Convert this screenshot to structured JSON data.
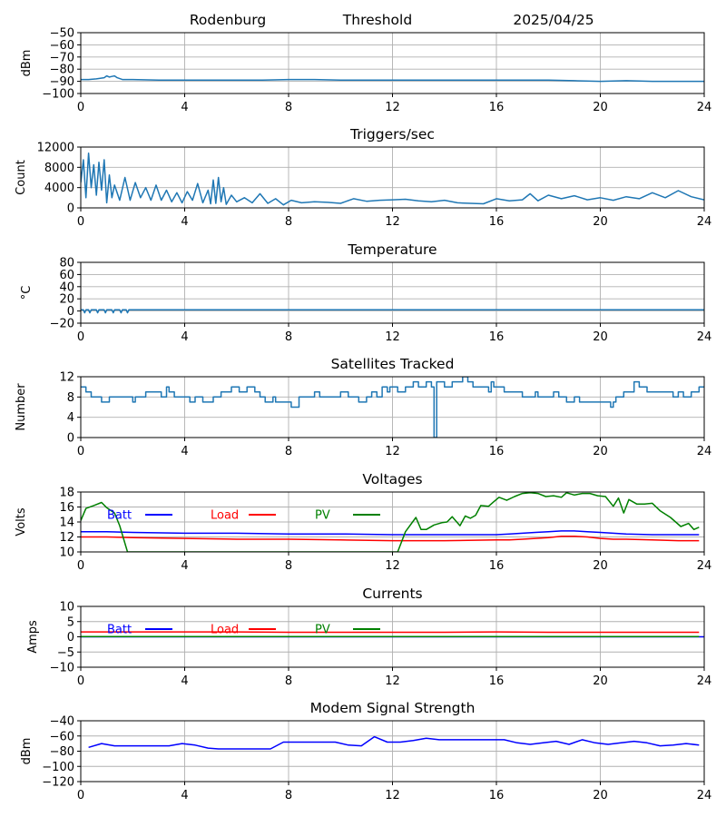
{
  "header": {
    "site": "Rodenburg",
    "label": "Threshold",
    "date": "2025/04/25"
  },
  "chart_data": [
    {
      "type": "line",
      "title": "",
      "xlabel": "",
      "ylabel": "dBm",
      "xlim": [
        0,
        24
      ],
      "ylim": [
        -100,
        -50
      ],
      "xticks": [
        0,
        4,
        8,
        12,
        16,
        20,
        24
      ],
      "yticks": [
        -100,
        -90,
        -80,
        -70,
        -60,
        -50
      ],
      "grid": true,
      "series": [
        {
          "color": "#1f77b4",
          "x": [
            0,
            0.3,
            0.6,
            0.9,
            1.0,
            1.1,
            1.2,
            1.3,
            1.4,
            1.6,
            2,
            3,
            4,
            5,
            6,
            7,
            8,
            9,
            10,
            11,
            12,
            13,
            14,
            15,
            16,
            17,
            18,
            19,
            20,
            21,
            22,
            23,
            24
          ],
          "y": [
            -88.5,
            -88.5,
            -88,
            -87,
            -85.5,
            -86.5,
            -86,
            -85.5,
            -87,
            -88.5,
            -88.5,
            -89,
            -89,
            -89,
            -89,
            -89,
            -88.5,
            -88.5,
            -89,
            -89,
            -89,
            -89,
            -89,
            -89,
            -89,
            -89,
            -89,
            -89.5,
            -90,
            -89.5,
            -90,
            -90,
            -90
          ]
        }
      ]
    },
    {
      "type": "line",
      "title": "Triggers/sec",
      "xlabel": "",
      "ylabel": "Count",
      "xlim": [
        0,
        24
      ],
      "ylim": [
        0,
        12000
      ],
      "xticks": [
        0,
        4,
        8,
        12,
        16,
        20,
        24
      ],
      "yticks": [
        0,
        4000,
        8000,
        12000
      ],
      "grid": true,
      "series": [
        {
          "color": "#1f77b4",
          "x": [
            0,
            0.1,
            0.2,
            0.3,
            0.4,
            0.5,
            0.6,
            0.7,
            0.8,
            0.9,
            1.0,
            1.1,
            1.2,
            1.3,
            1.5,
            1.7,
            1.9,
            2.1,
            2.3,
            2.5,
            2.7,
            2.9,
            3.1,
            3.3,
            3.5,
            3.7,
            3.9,
            4.1,
            4.3,
            4.5,
            4.7,
            4.9,
            5.0,
            5.1,
            5.2,
            5.3,
            5.4,
            5.5,
            5.6,
            5.8,
            6.0,
            6.3,
            6.6,
            6.9,
            7.2,
            7.5,
            7.8,
            8.1,
            8.5,
            9.0,
            9.5,
            10.0,
            10.5,
            11.0,
            11.5,
            12.0,
            12.5,
            13.0,
            13.5,
            14.0,
            14.5,
            15.0,
            15.5,
            16.0,
            16.5,
            17.0,
            17.3,
            17.6,
            18.0,
            18.5,
            19.0,
            19.5,
            20.0,
            20.5,
            21.0,
            21.5,
            22.0,
            22.5,
            23.0,
            23.5,
            24.0
          ],
          "y": [
            5000,
            9500,
            2000,
            10800,
            4000,
            8500,
            2500,
            9000,
            3500,
            9500,
            1000,
            6500,
            2000,
            4500,
            1500,
            6000,
            1500,
            5000,
            2000,
            4000,
            1500,
            4500,
            1500,
            3500,
            1200,
            3000,
            1000,
            3200,
            1500,
            4800,
            1000,
            3500,
            800,
            5500,
            900,
            6000,
            1200,
            4000,
            700,
            2500,
            1200,
            2000,
            1000,
            2800,
            900,
            1800,
            600,
            1500,
            1000,
            1200,
            1100,
            900,
            1800,
            1300,
            1500,
            1600,
            1700,
            1400,
            1200,
            1500,
            1000,
            900,
            800,
            1800,
            1400,
            1600,
            2800,
            1400,
            2500,
            1800,
            2400,
            1600,
            2000,
            1500,
            2200,
            1800,
            3000,
            2000,
            3400,
            2200,
            1600
          ]
        }
      ]
    },
    {
      "type": "line",
      "title": "Temperature",
      "xlabel": "",
      "ylabel": "°C",
      "xlim": [
        0,
        24
      ],
      "ylim": [
        -20,
        80
      ],
      "xticks": [
        0,
        4,
        8,
        12,
        16,
        20,
        24
      ],
      "yticks": [
        -20,
        0,
        20,
        40,
        60,
        80
      ],
      "grid": true,
      "series": [
        {
          "color": "#1f77b4",
          "x": [
            0,
            0.1,
            0.15,
            0.2,
            0.3,
            0.35,
            0.4,
            0.6,
            0.65,
            0.7,
            0.9,
            0.95,
            1.0,
            1.2,
            1.25,
            1.3,
            1.5,
            1.55,
            1.6,
            1.75,
            1.8,
            1.85,
            2.0,
            24.0
          ],
          "y": [
            2,
            2,
            -3,
            2,
            2,
            -3,
            2,
            2,
            -3,
            2,
            2,
            -3,
            2,
            2,
            -3,
            2,
            2,
            -3,
            2,
            2,
            -3,
            2,
            2,
            2
          ]
        }
      ]
    },
    {
      "type": "line",
      "title": "Satellites Tracked",
      "xlabel": "",
      "ylabel": "Number",
      "xlim": [
        0,
        24
      ],
      "ylim": [
        0,
        12
      ],
      "xticks": [
        0,
        4,
        8,
        12,
        16,
        20,
        24
      ],
      "yticks": [
        0,
        4,
        8,
        12
      ],
      "grid": true,
      "series": [
        {
          "color": "#1f77b4",
          "step": true,
          "x": [
            0,
            0.2,
            0.4,
            0.8,
            1.1,
            2.0,
            2.1,
            2.2,
            2.5,
            3.1,
            3.3,
            3.4,
            3.6,
            4.2,
            4.4,
            4.7,
            5.1,
            5.4,
            5.8,
            6.1,
            6.4,
            6.7,
            6.9,
            7.1,
            7.4,
            7.5,
            8.0,
            8.1,
            8.4,
            9.0,
            9.2,
            10.0,
            10.3,
            10.7,
            11.0,
            11.2,
            11.4,
            11.6,
            11.8,
            11.9,
            12.2,
            12.5,
            12.8,
            13.0,
            13.3,
            13.5,
            13.6,
            13.7,
            14.0,
            14.3,
            14.7,
            14.9,
            15.1,
            15.7,
            15.8,
            15.9,
            16.3,
            16.6,
            17.0,
            17.5,
            17.6,
            18.2,
            18.4,
            18.7,
            19.0,
            19.2,
            20.0,
            20.4,
            20.5,
            20.6,
            20.9,
            21.3,
            21.5,
            21.8,
            22.4,
            22.8,
            23.0,
            23.2,
            23.5,
            23.8,
            24.0
          ],
          "y": [
            10,
            9,
            8,
            7,
            8,
            7,
            8,
            8,
            9,
            8,
            10,
            9,
            8,
            7,
            8,
            7,
            8,
            9,
            10,
            9,
            10,
            9,
            8,
            7,
            8,
            7,
            7,
            6,
            8,
            9,
            8,
            9,
            8,
            7,
            8,
            9,
            8,
            10,
            9,
            10,
            9,
            10,
            11,
            10,
            11,
            10,
            0,
            11,
            10,
            11,
            12,
            11,
            10,
            9,
            11,
            10,
            9,
            9,
            8,
            9,
            8,
            9,
            8,
            7,
            8,
            7,
            7,
            6,
            7,
            8,
            9,
            11,
            10,
            9,
            9,
            8,
            9,
            8,
            9,
            10,
            10
          ]
        }
      ]
    },
    {
      "type": "line",
      "title": "Voltages",
      "xlabel": "",
      "ylabel": "Volts",
      "xlim": [
        0,
        24
      ],
      "ylim": [
        10,
        18
      ],
      "xticks": [
        0,
        4,
        8,
        12,
        16,
        20,
        24
      ],
      "yticks": [
        10,
        12,
        14,
        16,
        18
      ],
      "grid": true,
      "legend": "top-left",
      "series": [
        {
          "name": "Batt",
          "color": "#0000ff",
          "x": [
            0,
            1,
            2,
            4,
            6,
            8,
            10,
            12,
            14,
            16,
            16.5,
            17,
            17.5,
            18,
            18.5,
            19,
            19.5,
            20,
            20.5,
            21,
            22,
            23,
            23.8
          ],
          "y": [
            12.7,
            12.7,
            12.6,
            12.5,
            12.5,
            12.4,
            12.4,
            12.3,
            12.3,
            12.3,
            12.4,
            12.5,
            12.6,
            12.7,
            12.8,
            12.8,
            12.7,
            12.6,
            12.5,
            12.4,
            12.3,
            12.3,
            12.3
          ]
        },
        {
          "name": "Load",
          "color": "#ff0000",
          "x": [
            0,
            1,
            2,
            4,
            6,
            8,
            10,
            12,
            14,
            16,
            16.5,
            17,
            17.5,
            18,
            18.5,
            19,
            19.5,
            20,
            20.5,
            21,
            22,
            23,
            23.8
          ],
          "y": [
            12,
            12,
            11.9,
            11.8,
            11.7,
            11.7,
            11.6,
            11.5,
            11.5,
            11.6,
            11.6,
            11.7,
            11.8,
            11.9,
            12.1,
            12.1,
            12.0,
            11.8,
            11.7,
            11.7,
            11.6,
            11.5,
            11.5
          ],
          "x_orig_dummy": null
        },
        {
          "name": "PV",
          "color": "#008000",
          "x": [
            0,
            0.2,
            0.5,
            0.8,
            1.0,
            1.3,
            1.5,
            1.8,
            12.2,
            12.5,
            12.9,
            13.1,
            13.3,
            13.6,
            13.9,
            14.1,
            14.3,
            14.6,
            14.8,
            15.0,
            15.2,
            15.4,
            15.7,
            15.9,
            16.1,
            16.4,
            16.7,
            17.0,
            17.3,
            17.6,
            17.9,
            18.2,
            18.5,
            18.7,
            19.0,
            19.3,
            19.6,
            19.9,
            20.2,
            20.5,
            20.7,
            20.9,
            21.1,
            21.4,
            21.7,
            22.0,
            22.3,
            22.7,
            23.1,
            23.4,
            23.6,
            23.8
          ],
          "y": [
            14.2,
            15.8,
            16.2,
            16.6,
            15.9,
            15.2,
            13.5,
            10,
            10,
            12.7,
            14.6,
            13.0,
            13.0,
            13.6,
            13.9,
            14.0,
            14.7,
            13.5,
            14.8,
            14.5,
            14.9,
            16.2,
            16.1,
            16.7,
            17.3,
            16.9,
            17.4,
            17.8,
            17.9,
            17.8,
            17.4,
            17.5,
            17.3,
            17.9,
            17.6,
            17.8,
            17.8,
            17.5,
            17.4,
            16.1,
            17.2,
            15.2,
            17.0,
            16.4,
            16.4,
            16.5,
            15.5,
            14.6,
            13.4,
            13.8,
            13.0,
            13.3
          ]
        }
      ]
    },
    {
      "type": "line",
      "title": "Currents",
      "xlabel": "",
      "ylabel": "Amps",
      "xlim": [
        0,
        24
      ],
      "ylim": [
        -10,
        10
      ],
      "xticks": [
        0,
        4,
        8,
        12,
        16,
        20,
        24
      ],
      "yticks": [
        -10,
        -5,
        0,
        5,
        10
      ],
      "grid": true,
      "legend": "top-left",
      "series": [
        {
          "name": "Batt",
          "color": "#0000ff",
          "x": [
            0,
            24
          ],
          "y": [
            0,
            0
          ]
        },
        {
          "name": "Load",
          "color": "#ff0000",
          "x": [
            0,
            2,
            4,
            6,
            8,
            10,
            12,
            14,
            16,
            18,
            20,
            22,
            23.8
          ],
          "y": [
            1.6,
            1.6,
            1.6,
            1.6,
            1.5,
            1.5,
            1.5,
            1.5,
            1.6,
            1.5,
            1.5,
            1.5,
            1.5
          ]
        },
        {
          "name": "PV",
          "color": "#008000",
          "x": [
            0,
            23.8
          ],
          "y": [
            0.1,
            0.1
          ]
        }
      ]
    },
    {
      "type": "line",
      "title": "Modem Signal Strength",
      "xlabel": "",
      "ylabel": "dBm",
      "xlim": [
        0,
        24
      ],
      "ylim": [
        -120,
        -40
      ],
      "xticks": [
        0,
        4,
        8,
        12,
        16,
        20,
        24
      ],
      "yticks": [
        -120,
        -100,
        -80,
        -60,
        -40
      ],
      "grid": true,
      "series": [
        {
          "color": "#0000ff",
          "x": [
            0.3,
            0.8,
            1.3,
            1.8,
            2.8,
            3.4,
            3.9,
            4.4,
            4.9,
            5.3,
            5.8,
            6.3,
            6.8,
            7.3,
            7.8,
            8.3,
            8.8,
            9.3,
            9.8,
            10.3,
            10.8,
            11.3,
            11.8,
            12.3,
            12.8,
            13.3,
            13.8,
            14.3,
            14.8,
            15.3,
            15.8,
            16.3,
            16.8,
            17.3,
            17.8,
            18.3,
            18.8,
            19.3,
            19.8,
            20.3,
            20.8,
            21.3,
            21.8,
            22.3,
            22.8,
            23.3,
            23.8
          ],
          "y": [
            -75,
            -70,
            -73,
            -73,
            -73,
            -73,
            -70,
            -72,
            -76,
            -77,
            -77,
            -77,
            -77,
            -77,
            -68,
            -68,
            -68,
            -68,
            -68,
            -72,
            -73,
            -61,
            -68,
            -68,
            -66,
            -63,
            -65,
            -65,
            -65,
            -65,
            -65,
            -65,
            -69,
            -71,
            -69,
            -67,
            -71,
            -65,
            -69,
            -71,
            -69,
            -67,
            -69,
            -73,
            -72,
            -70,
            -72
          ]
        }
      ]
    }
  ]
}
